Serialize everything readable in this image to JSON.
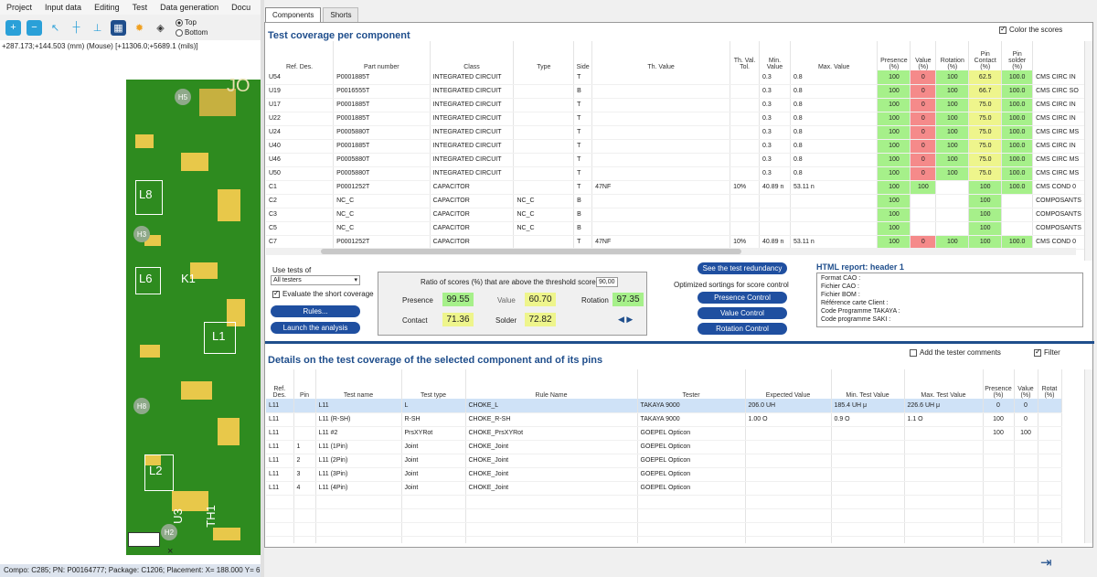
{
  "menu": [
    "Project",
    "Input data",
    "Editing",
    "Test",
    "Data generation",
    "Docu"
  ],
  "toolbar": {
    "radio_top": "Top",
    "radio_bottom": "Bottom"
  },
  "coords": "+287.173;+144.503 (mm) (Mouse) [+11306.0;+5689.1 (mils)]",
  "board_labels": {
    "h5": "H5",
    "jo": "JO",
    "l8": "L8",
    "h3": "H3",
    "l6": "L6",
    "k1": "K1",
    "l1": "L1",
    "h8": "H8",
    "l2": "L2",
    "u3": "U3",
    "th1": "TH1",
    "h2": "H2",
    "x": "×"
  },
  "statusbar": "Compo: C285; PN: P00164777; Package: C1206; Placement: X= 188.000  Y= 6",
  "tabs": [
    "Components",
    "Shorts"
  ],
  "coverage": {
    "title": "Test coverage per component",
    "color_scores_label": "Color the scores",
    "columns": [
      "Ref. Des.",
      "Part number",
      "Class",
      "Type",
      "Side",
      "Th. Value",
      "Th. Val. Tol.",
      "Min. Value",
      "Max. Value",
      "Presence (%)",
      "Value (%)",
      "Rotation (%)",
      "Pin Contact (%)",
      "Pin solder (%)",
      ""
    ],
    "rows": [
      [
        "U54",
        "P0001885T",
        "INTEGRATED CIRCUIT",
        "",
        "T",
        "",
        "",
        "0.3",
        "0.8",
        "100",
        "0",
        "100",
        "62.5",
        "100.0",
        "CMS CIRC IN"
      ],
      [
        "U19",
        "P0016555T",
        "INTEGRATED CIRCUIT",
        "",
        "B",
        "",
        "",
        "0.3",
        "0.8",
        "100",
        "0",
        "100",
        "66.7",
        "100.0",
        "CMS CIRC SO"
      ],
      [
        "U17",
        "P0001885T",
        "INTEGRATED CIRCUIT",
        "",
        "T",
        "",
        "",
        "0.3",
        "0.8",
        "100",
        "0",
        "100",
        "75.0",
        "100.0",
        "CMS CIRC IN"
      ],
      [
        "U22",
        "P0001885T",
        "INTEGRATED CIRCUIT",
        "",
        "T",
        "",
        "",
        "0.3",
        "0.8",
        "100",
        "0",
        "100",
        "75.0",
        "100.0",
        "CMS CIRC IN"
      ],
      [
        "U24",
        "P0005880T",
        "INTEGRATED CIRCUIT",
        "",
        "T",
        "",
        "",
        "0.3",
        "0.8",
        "100",
        "0",
        "100",
        "75.0",
        "100.0",
        "CMS CIRC MS"
      ],
      [
        "U40",
        "P0001885T",
        "INTEGRATED CIRCUIT",
        "",
        "T",
        "",
        "",
        "0.3",
        "0.8",
        "100",
        "0",
        "100",
        "75.0",
        "100.0",
        "CMS CIRC IN"
      ],
      [
        "U46",
        "P0005880T",
        "INTEGRATED CIRCUIT",
        "",
        "T",
        "",
        "",
        "0.3",
        "0.8",
        "100",
        "0",
        "100",
        "75.0",
        "100.0",
        "CMS CIRC MS"
      ],
      [
        "U50",
        "P0005880T",
        "INTEGRATED CIRCUIT",
        "",
        "T",
        "",
        "",
        "0.3",
        "0.8",
        "100",
        "0",
        "100",
        "75.0",
        "100.0",
        "CMS CIRC MS"
      ],
      [
        "C1",
        "P0001252T",
        "CAPACITOR",
        "",
        "T",
        "47NF",
        "10%",
        "40.89 n",
        "53.11 n",
        "100",
        "100",
        "",
        "100",
        "100.0",
        "CMS COND 0"
      ],
      [
        "C2",
        "NC_C",
        "CAPACITOR",
        "NC_C",
        "B",
        "",
        "",
        "",
        "",
        "100",
        "",
        "",
        "100",
        "",
        "COMPOSANTS"
      ],
      [
        "C3",
        "NC_C",
        "CAPACITOR",
        "NC_C",
        "B",
        "",
        "",
        "",
        "",
        "100",
        "",
        "",
        "100",
        "",
        "COMPOSANTS"
      ],
      [
        "C5",
        "NC_C",
        "CAPACITOR",
        "NC_C",
        "B",
        "",
        "",
        "",
        "",
        "100",
        "",
        "",
        "100",
        "",
        "COMPOSANTS"
      ],
      [
        "C7",
        "P0001252T",
        "CAPACITOR",
        "",
        "T",
        "47NF",
        "10%",
        "40.89 n",
        "53.11 n",
        "100",
        "0",
        "100",
        "100",
        "100.0",
        "CMS COND 0"
      ]
    ]
  },
  "controls": {
    "use_tests_label": "Use tests of",
    "use_tests_value": "All testers",
    "evaluate_short": "Evaluate the short coverage",
    "rules_btn": "Rules...",
    "launch_btn": "Launch the analysis",
    "ratio_label": "Ratio of scores (%) that are above the threshold score of",
    "threshold": "90,00",
    "presence_label": "Presence",
    "presence": "99.55",
    "value_label": "Value",
    "value": "60.70",
    "rotation_label": "Rotation",
    "rotation": "97.35",
    "contact_label": "Contact",
    "contact": "71.36",
    "solder_label": "Solder",
    "solder": "72.82",
    "redundancy_btn": "See the test redundancy",
    "optimized_label": "Optimized sortings for score control",
    "presence_ctrl": "Presence Control",
    "value_ctrl": "Value Control",
    "rotation_ctrl": "Rotation Control",
    "html_report_label": "HTML report:",
    "html_report_value": "header 1",
    "report_lines": [
      "Format CAO :",
      "Fichier CAO :",
      "Fichier BOM :",
      "Référence carte Client :",
      "Code Programme TAKAYA :",
      "Code programme SAKI :"
    ]
  },
  "details": {
    "title": "Details on the test coverage of the selected component and of its pins",
    "add_comments": "Add the tester comments",
    "filter": "Filter",
    "columns": [
      "Ref. Des.",
      "Pin",
      "Test name",
      "Test type",
      "Rule Name",
      "Tester",
      "Expected Value",
      "Min. Test Value",
      "Max. Test Value",
      "Presence (%)",
      "Value (%)",
      "Rotat (%)"
    ],
    "rows": [
      [
        "L11",
        "",
        "L11",
        "L",
        "CHOKE_L",
        "TAKAYA 9000",
        "206.0 UH",
        "185.4 UH μ",
        "226.6 UH μ",
        "0",
        "0",
        ""
      ],
      [
        "L11",
        "",
        "L11 (R-SH)",
        "R-SH",
        "CHOKE_R-SH",
        "TAKAYA 9000",
        "1.00 O",
        "0.9 O",
        "1.1 O",
        "100",
        "0",
        ""
      ],
      [
        "L11",
        "",
        "L11 #2",
        "PrsXYRot",
        "CHOKE_PrsXYRot",
        "GOEPEL Opticon",
        "",
        "",
        "",
        "100",
        "100",
        ""
      ],
      [
        "L11",
        "1",
        "L11 (1Pin)",
        "Joint",
        "CHOKE_Joint",
        "GOEPEL Opticon",
        "",
        "",
        "",
        "",
        "",
        ""
      ],
      [
        "L11",
        "2",
        "L11 (2Pin)",
        "Joint",
        "CHOKE_Joint",
        "GOEPEL Opticon",
        "",
        "",
        "",
        "",
        "",
        ""
      ],
      [
        "L11",
        "3",
        "L11 (3Pin)",
        "Joint",
        "CHOKE_Joint",
        "GOEPEL Opticon",
        "",
        "",
        "",
        "",
        "",
        ""
      ],
      [
        "L11",
        "4",
        "L11 (4Pin)",
        "Joint",
        "CHOKE_Joint",
        "GOEPEL Opticon",
        "",
        "",
        "",
        "",
        "",
        ""
      ]
    ]
  },
  "colors": {
    "accent": "#1f4e8c",
    "button": "#1f4fa0",
    "green": "#a6f08a",
    "red": "#f58a8a",
    "yellow": "#eef58c",
    "pcb": "#2e8b1f"
  }
}
